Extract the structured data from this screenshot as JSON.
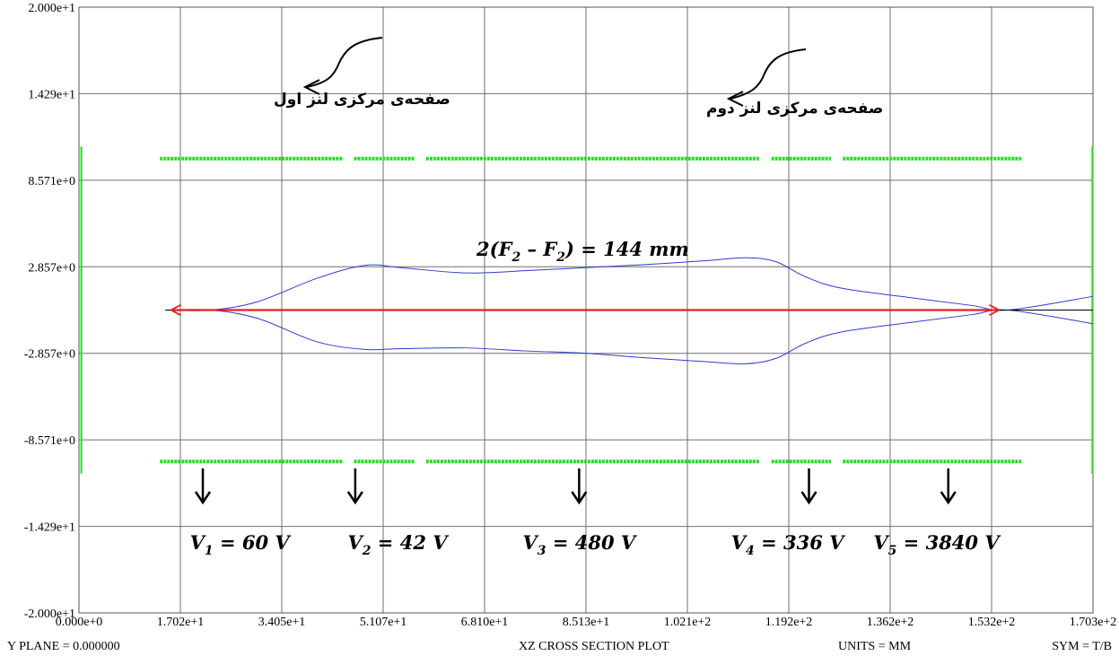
{
  "chart_data": {
    "type": "line",
    "title": "XZ CROSS SECTION PLOT",
    "xlim": [
      0,
      170.3
    ],
    "ylim": [
      -20,
      20
    ],
    "x_ticks": [
      "0.000e+0",
      "1.702e+1",
      "3.405e+1",
      "5.107e+1",
      "6.810e+1",
      "8.513e+1",
      "1.021e+2",
      "1.192e+2",
      "1.362e+2",
      "1.532e+2",
      "1.703e+2"
    ],
    "y_ticks": [
      "2.000e+1",
      "1.429e+1",
      "8.571e+0",
      "2.857e+0",
      "-2.857e+0",
      "-8.571e+0",
      "-1.429e+1",
      "-2.000e+1"
    ],
    "grid": true,
    "series": [
      {
        "color": "#2d3cd2",
        "points": [
          [
            14.5,
            0
          ],
          [
            22.1,
            0
          ],
          [
            30,
            0.55
          ],
          [
            40,
            2.1
          ],
          [
            48,
            2.95
          ],
          [
            54,
            2.8
          ],
          [
            65,
            2.45
          ],
          [
            75,
            2.6
          ],
          [
            85,
            2.8
          ],
          [
            95,
            3.0
          ],
          [
            105,
            3.25
          ],
          [
            112,
            3.45
          ],
          [
            117,
            3.2
          ],
          [
            122,
            2.2
          ],
          [
            128,
            1.45
          ],
          [
            140,
            0.8
          ],
          [
            150,
            0.3
          ],
          [
            156,
            0
          ],
          [
            170.3,
            0.9
          ]
        ]
      },
      {
        "color": "#2d3cd2",
        "points": [
          [
            14.5,
            0
          ],
          [
            22.1,
            0
          ],
          [
            30,
            -0.55
          ],
          [
            40,
            -2.1
          ],
          [
            48,
            -2.6
          ],
          [
            54,
            -2.55
          ],
          [
            65,
            -2.5
          ],
          [
            75,
            -2.7
          ],
          [
            85,
            -2.85
          ],
          [
            95,
            -3.15
          ],
          [
            105,
            -3.4
          ],
          [
            112,
            -3.55
          ],
          [
            117,
            -3.2
          ],
          [
            122,
            -2.2
          ],
          [
            128,
            -1.45
          ],
          [
            140,
            -0.8
          ],
          [
            150,
            -0.3
          ],
          [
            156,
            0
          ],
          [
            170.3,
            -0.9
          ]
        ]
      },
      {
        "color": "#000000",
        "points": [
          [
            14.5,
            0
          ],
          [
            170.3,
            0
          ]
        ]
      }
    ],
    "electrodes": [
      {
        "x1": 13.6,
        "x2": 44.4,
        "y": 10.0,
        "color": "#22dd22"
      },
      {
        "x1": 46.2,
        "x2": 56.3,
        "y": 10.0,
        "color": "#22dd22"
      },
      {
        "x1": 58.3,
        "x2": 114.3,
        "y": 10.0,
        "color": "#22dd22"
      },
      {
        "x1": 116.3,
        "x2": 126.3,
        "y": 10.0,
        "color": "#22dd22"
      },
      {
        "x1": 128.3,
        "x2": 158.3,
        "y": 10.0,
        "color": "#22dd22"
      },
      {
        "x1": 13.6,
        "x2": 44.4,
        "y": -10.0,
        "color": "#22dd22"
      },
      {
        "x1": 46.2,
        "x2": 56.3,
        "y": -10.0,
        "color": "#22dd22"
      },
      {
        "x1": 58.3,
        "x2": 114.3,
        "y": -10.0,
        "color": "#22dd22"
      },
      {
        "x1": 116.3,
        "x2": 126.3,
        "y": -10.0,
        "color": "#22dd22"
      },
      {
        "x1": 128.3,
        "x2": 158.3,
        "y": -10.0,
        "color": "#22dd22"
      }
    ],
    "end_plates": [
      {
        "x": 0.4,
        "y1": -10.8,
        "y2": 10.8,
        "color": "#22dd22"
      },
      {
        "x": 170.2,
        "y1": -10.8,
        "y2": 10.8,
        "color": "#22dd22"
      }
    ],
    "annotations": {
      "lens1_plane": "صفحه‌ی مرکزی لنز اول",
      "lens2_plane": "صفحه‌ی مرکزی لنز دوم",
      "distance_label": {
        "main": "2(F",
        "s1": "2",
        "mid": " – F",
        "s2": "2",
        "tail": ") = 144 mm"
      },
      "distance_arrow": {
        "x1": 15.5,
        "x2": 154.5,
        "y": 0,
        "color": "#e02020"
      },
      "voltages": [
        {
          "sym": "V",
          "sub": "1",
          "rest": " = 60 V",
          "x": 27.0
        },
        {
          "sym": "V",
          "sub": "2",
          "rest": " = 42 V",
          "x": 53.5
        },
        {
          "sym": "V",
          "sub": "3",
          "rest": " = 480 V",
          "x": 84.0
        },
        {
          "sym": "V",
          "sub": "4",
          "rest": " = 336 V",
          "x": 119.0
        },
        {
          "sym": "V",
          "sub": "5",
          "rest": " = 3840 V",
          "x": 144.0
        }
      ],
      "voltage_arrows_x": [
        20.8,
        46.4,
        84.0,
        122.6,
        146.0
      ]
    },
    "footer": {
      "plane": "Y PLANE = 0.000000",
      "title": "XZ CROSS SECTION PLOT",
      "units": "UNITS = MM",
      "sym": "SYM = T/B"
    }
  }
}
